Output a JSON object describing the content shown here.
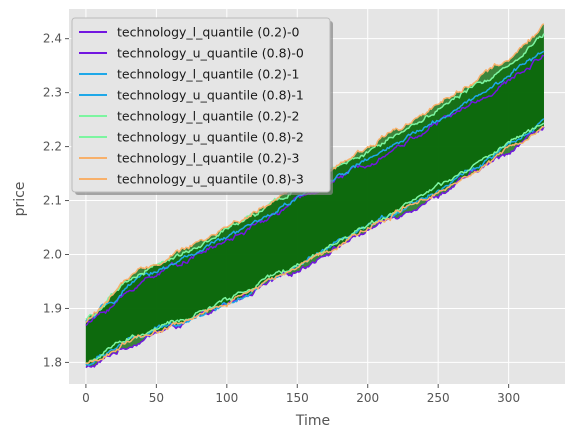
{
  "chart_data": {
    "type": "line",
    "title": "",
    "xlabel": "Time",
    "ylabel": "price",
    "xlim": [
      -12,
      340
    ],
    "ylim": [
      1.76,
      2.455
    ],
    "xticks": [
      0,
      50,
      100,
      150,
      200,
      250,
      300
    ],
    "xtick_labels": [
      "0",
      "50",
      "100",
      "150",
      "200",
      "250",
      "300"
    ],
    "yticks": [
      1.8,
      1.9,
      2.0,
      2.1,
      2.2,
      2.3,
      2.4
    ],
    "ytick_labels": [
      "1.8",
      "1.9",
      "2.0",
      "2.1",
      "2.2",
      "2.3",
      "2.4"
    ],
    "grid": true,
    "legend_position": "top-left",
    "n_points": 326,
    "background_color": "#e5e5e5",
    "band_fill_color": "#0d6a0d",
    "series": [
      {
        "name": "technology_l_quantile (0.2)-0",
        "color": "#7216e0",
        "x": [
          0,
          5,
          10,
          20,
          30,
          40,
          50,
          75,
          100,
          125,
          150,
          175,
          200,
          225,
          250,
          275,
          300,
          325
        ],
        "values": [
          1.79,
          1.792,
          1.8,
          1.818,
          1.83,
          1.842,
          1.855,
          1.877,
          1.905,
          1.94,
          1.97,
          2.01,
          2.045,
          2.078,
          2.11,
          2.15,
          2.19,
          2.24
        ]
      },
      {
        "name": "technology_u_quantile (0.8)-0",
        "color": "#7216e0",
        "x": [
          0,
          5,
          10,
          20,
          30,
          40,
          50,
          75,
          100,
          125,
          150,
          175,
          200,
          225,
          250,
          275,
          300,
          325
        ],
        "values": [
          1.87,
          1.878,
          1.89,
          1.908,
          1.93,
          1.95,
          1.965,
          1.995,
          2.025,
          2.06,
          2.1,
          2.135,
          2.17,
          2.205,
          2.245,
          2.28,
          2.32,
          2.37
        ]
      },
      {
        "name": "technology_l_quantile (0.2)-1",
        "color": "#1fa8e8",
        "x": [
          0,
          5,
          10,
          20,
          30,
          40,
          50,
          75,
          100,
          125,
          150,
          175,
          200,
          225,
          250,
          275,
          300,
          325
        ],
        "values": [
          1.795,
          1.8,
          1.81,
          1.826,
          1.84,
          1.848,
          1.86,
          1.883,
          1.91,
          1.945,
          1.975,
          2.015,
          2.05,
          2.087,
          2.12,
          2.16,
          2.2,
          2.245
        ]
      },
      {
        "name": "technology_u_quantile (0.8)-1",
        "color": "#1fa8e8",
        "x": [
          0,
          5,
          10,
          20,
          30,
          40,
          50,
          75,
          100,
          125,
          150,
          175,
          200,
          225,
          250,
          275,
          300,
          325
        ],
        "values": [
          1.875,
          1.884,
          1.895,
          1.915,
          1.94,
          1.955,
          1.97,
          2.0,
          2.03,
          2.065,
          2.105,
          2.14,
          2.175,
          2.21,
          2.25,
          2.29,
          2.33,
          2.38
        ]
      },
      {
        "name": "technology_l_quantile (0.2)-2",
        "color": "#7cf5a0",
        "x": [
          0,
          5,
          10,
          20,
          30,
          40,
          50,
          75,
          100,
          125,
          150,
          175,
          200,
          225,
          250,
          275,
          300,
          325
        ],
        "values": [
          1.8,
          1.804,
          1.812,
          1.83,
          1.843,
          1.852,
          1.862,
          1.885,
          1.915,
          1.95,
          1.98,
          2.018,
          2.055,
          2.09,
          2.125,
          2.162,
          2.205,
          2.245
        ]
      },
      {
        "name": "technology_u_quantile (0.8)-2",
        "color": "#7cf5a0",
        "x": [
          0,
          5,
          10,
          20,
          30,
          40,
          50,
          75,
          100,
          125,
          150,
          175,
          200,
          225,
          250,
          275,
          300,
          325
        ],
        "values": [
          1.88,
          1.89,
          1.9,
          1.925,
          1.95,
          1.965,
          1.98,
          2.01,
          2.045,
          2.08,
          2.12,
          2.155,
          2.19,
          2.23,
          2.27,
          2.31,
          2.35,
          2.41
        ]
      },
      {
        "name": "technology_l_quantile (0.2)-3",
        "color": "#f8b06a",
        "x": [
          0,
          5,
          10,
          20,
          30,
          40,
          50,
          75,
          100,
          125,
          150,
          175,
          200,
          225,
          250,
          275,
          300,
          325
        ],
        "values": [
          1.795,
          1.8,
          1.808,
          1.822,
          1.838,
          1.848,
          1.858,
          1.88,
          1.91,
          1.945,
          1.977,
          2.014,
          2.05,
          2.085,
          2.118,
          2.155,
          2.195,
          2.235
        ]
      },
      {
        "name": "technology_u_quantile (0.8)-3",
        "color": "#f8b06a",
        "x": [
          0,
          5,
          10,
          20,
          30,
          40,
          50,
          75,
          100,
          125,
          150,
          175,
          200,
          225,
          250,
          275,
          300,
          325
        ],
        "values": [
          1.875,
          1.888,
          1.9,
          1.93,
          1.955,
          1.97,
          1.985,
          2.015,
          2.05,
          2.085,
          2.125,
          2.16,
          2.2,
          2.24,
          2.28,
          2.32,
          2.36,
          2.425
        ]
      }
    ]
  }
}
